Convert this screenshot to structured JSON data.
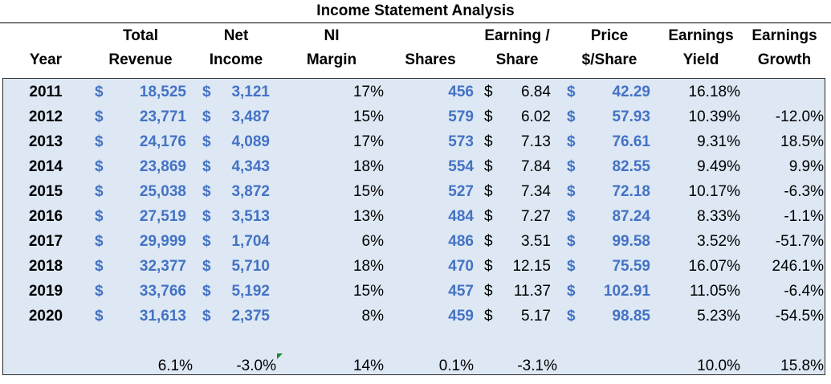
{
  "title": "Income Statement Analysis",
  "headers": {
    "year": [
      "",
      "Year"
    ],
    "total_revenue": [
      "Total",
      "Revenue"
    ],
    "net_income": [
      "Net",
      "Income"
    ],
    "ni_margin": [
      "NI",
      "Margin"
    ],
    "shares": [
      "",
      "Shares"
    ],
    "eps": [
      "Earning /",
      "Share"
    ],
    "price": [
      "Price",
      "$/Share"
    ],
    "earnings_yield": [
      "Earnings",
      "Yield"
    ],
    "earnings_growth": [
      "Earnings",
      "Growth"
    ]
  },
  "currency_symbol": "$",
  "rows": [
    {
      "year": "2011",
      "revenue": "18,525",
      "net_income": "3,121",
      "margin": "17%",
      "shares": "456",
      "eps": "6.84",
      "price": "42.29",
      "yield": "16.18%",
      "growth": ""
    },
    {
      "year": "2012",
      "revenue": "23,771",
      "net_income": "3,487",
      "margin": "15%",
      "shares": "579",
      "eps": "6.02",
      "price": "57.93",
      "yield": "10.39%",
      "growth": "-12.0%"
    },
    {
      "year": "2013",
      "revenue": "24,176",
      "net_income": "4,089",
      "margin": "17%",
      "shares": "573",
      "eps": "7.13",
      "price": "76.61",
      "yield": "9.31%",
      "growth": "18.5%"
    },
    {
      "year": "2014",
      "revenue": "23,869",
      "net_income": "4,343",
      "margin": "18%",
      "shares": "554",
      "eps": "7.84",
      "price": "82.55",
      "yield": "9.49%",
      "growth": "9.9%"
    },
    {
      "year": "2015",
      "revenue": "25,038",
      "net_income": "3,872",
      "margin": "15%",
      "shares": "527",
      "eps": "7.34",
      "price": "72.18",
      "yield": "10.17%",
      "growth": "-6.3%"
    },
    {
      "year": "2016",
      "revenue": "27,519",
      "net_income": "3,513",
      "margin": "13%",
      "shares": "484",
      "eps": "7.27",
      "price": "87.24",
      "yield": "8.33%",
      "growth": "-1.1%"
    },
    {
      "year": "2017",
      "revenue": "29,999",
      "net_income": "1,704",
      "margin": "6%",
      "shares": "486",
      "eps": "3.51",
      "price": "99.58",
      "yield": "3.52%",
      "growth": "-51.7%"
    },
    {
      "year": "2018",
      "revenue": "32,377",
      "net_income": "5,710",
      "margin": "18%",
      "shares": "470",
      "eps": "12.15",
      "price": "75.59",
      "yield": "16.07%",
      "growth": "246.1%"
    },
    {
      "year": "2019",
      "revenue": "33,766",
      "net_income": "5,192",
      "margin": "15%",
      "shares": "457",
      "eps": "11.37",
      "price": "102.91",
      "yield": "11.05%",
      "growth": "-6.4%"
    },
    {
      "year": "2020",
      "revenue": "31,613",
      "net_income": "2,375",
      "margin": "8%",
      "shares": "459",
      "eps": "5.17",
      "price": "98.85",
      "yield": "5.23%",
      "growth": "-54.5%"
    }
  ],
  "summary": {
    "revenue": "6.1%",
    "net_income": "-3.0%",
    "margin": "14%",
    "shares": "0.1%",
    "eps": "-3.1%",
    "yield": "10.0%",
    "growth": "15.8%"
  },
  "colors": {
    "accent_blue": "#4472c4",
    "body_fill": "#dde8f4",
    "comment_marker": "#1a8a2a"
  }
}
